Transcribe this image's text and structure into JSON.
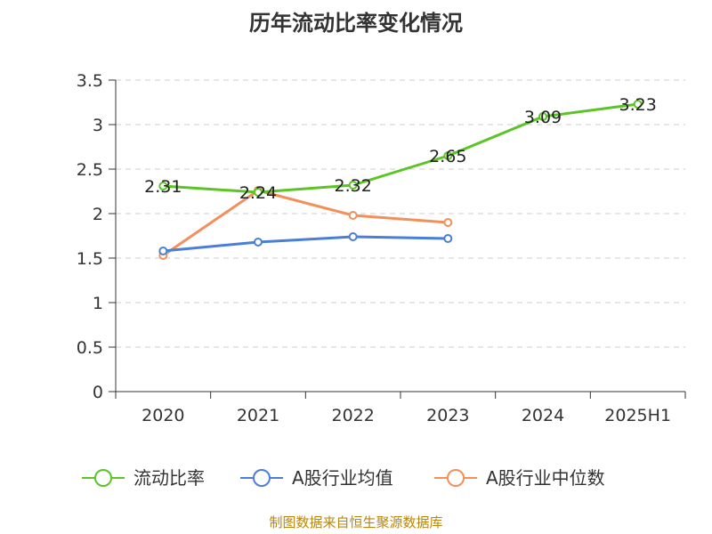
{
  "chart_data": {
    "type": "line",
    "title": "历年流动比率变化情况",
    "categories": [
      "2020",
      "2021",
      "2022",
      "2023",
      "2024",
      "2025H1"
    ],
    "ylim": [
      0,
      3.5
    ],
    "yticks": [
      "0",
      "0.5",
      "1",
      "1.5",
      "2",
      "2.5",
      "3",
      "3.5"
    ],
    "grid": true,
    "legend_position": "bottom",
    "series": [
      {
        "name": "流动比率",
        "color": "#5cc427",
        "values": [
          2.31,
          2.24,
          2.32,
          2.65,
          3.09,
          3.23
        ],
        "labels": [
          "2.31",
          "2.24",
          "2.32",
          "2.65",
          "3.09",
          "3.23"
        ]
      },
      {
        "name": "A股行业均值",
        "color": "#4a7fd9",
        "values": [
          1.58,
          1.68,
          1.74,
          1.72,
          null,
          null
        ]
      },
      {
        "name": "A股行业中位数",
        "color": "#f28f5b",
        "values": [
          1.53,
          2.26,
          1.98,
          1.9,
          null,
          null
        ]
      }
    ],
    "source": "制图数据来自恒生聚源数据库"
  }
}
